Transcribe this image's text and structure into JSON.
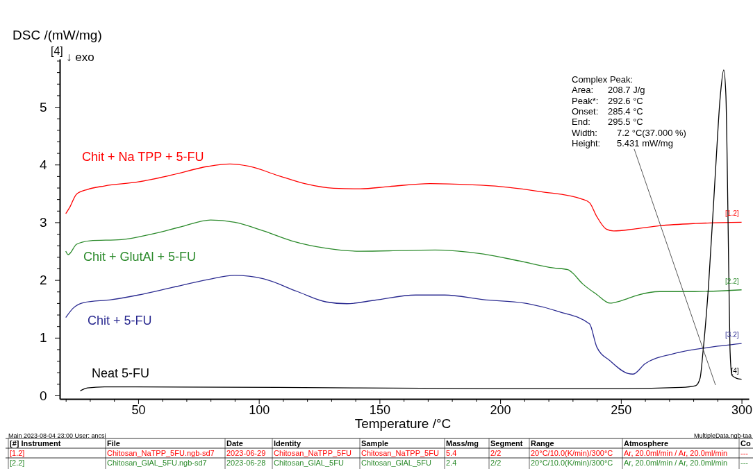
{
  "chart_data": {
    "type": "line",
    "xlabel": "Temperature /°C",
    "ylabel": "DSC /(mW/mg)",
    "xlim": [
      17.5,
      303
    ],
    "ylim": [
      -0.06,
      5.83
    ],
    "xticks": [
      {
        "value": 20,
        "label": null
      },
      {
        "value": 30,
        "label": null
      },
      {
        "value": 40,
        "label": null
      },
      50,
      {
        "value": 60,
        "label": null
      },
      {
        "value": 70,
        "label": null
      },
      {
        "value": 80,
        "label": null
      },
      {
        "value": 90,
        "label": null
      },
      100,
      {
        "value": 110,
        "label": null
      },
      {
        "value": 120,
        "label": null
      },
      {
        "value": 130,
        "label": null
      },
      {
        "value": 140,
        "label": null
      },
      150,
      {
        "value": 160,
        "label": null
      },
      {
        "value": 170,
        "label": null
      },
      {
        "value": 180,
        "label": null
      },
      {
        "value": 190,
        "label": null
      },
      200,
      {
        "value": 210,
        "label": null
      },
      {
        "value": 220,
        "label": null
      },
      {
        "value": 230,
        "label": null
      },
      {
        "value": 240,
        "label": null
      },
      250,
      {
        "value": 260,
        "label": null
      },
      {
        "value": 270,
        "label": null
      },
      {
        "value": 280,
        "label": null
      },
      {
        "value": 290,
        "label": null
      },
      300
    ],
    "yticks": [
      0,
      {
        "value": 0.2,
        "label": null
      },
      {
        "value": 0.4,
        "label": null
      },
      {
        "value": 0.6,
        "label": null
      },
      {
        "value": 0.8,
        "label": null
      },
      1,
      {
        "value": 1.2,
        "label": null
      },
      {
        "value": 1.4,
        "label": null
      },
      {
        "value": 1.6,
        "label": null
      },
      {
        "value": 1.8,
        "label": null
      },
      2,
      {
        "value": 2.2,
        "label": null
      },
      {
        "value": 2.4,
        "label": null
      },
      {
        "value": 2.6,
        "label": null
      },
      {
        "value": 2.8,
        "label": null
      },
      3,
      {
        "value": 3.2,
        "label": null
      },
      {
        "value": 3.4,
        "label": null
      },
      {
        "value": 3.6,
        "label": null
      },
      {
        "value": 3.8,
        "label": null
      },
      4,
      {
        "value": 4.2,
        "label": null
      },
      {
        "value": 4.4,
        "label": null
      },
      {
        "value": 4.6,
        "label": null
      },
      {
        "value": 4.8,
        "label": null
      },
      5,
      {
        "value": 5.2,
        "label": null
      },
      {
        "value": 5.4,
        "label": null
      },
      {
        "value": 5.6,
        "label": null
      },
      {
        "value": 5.8,
        "label": null
      }
    ],
    "grid": false,
    "legend": false,
    "line_style": "solid",
    "series": [
      {
        "name": "Chit + Na TPP + 5-FU",
        "color": "#ff0000",
        "x": [
          20,
          21.5,
          24.5,
          29,
          36,
          50,
          64,
          79,
          88,
          96,
          108,
          119,
          131,
          142,
          154,
          171,
          188,
          200,
          217,
          234,
          237,
          240,
          244,
          247,
          255,
          266,
          281,
          300
        ],
        "values": [
          3.15,
          3.25,
          3.49,
          3.57,
          3.63,
          3.7,
          3.82,
          3.97,
          4.01,
          3.97,
          3.81,
          3.67,
          3.59,
          3.58,
          3.62,
          3.67,
          3.65,
          3.62,
          3.53,
          3.4,
          3.34,
          3.1,
          2.88,
          2.85,
          2.88,
          2.94,
          2.98,
          3.0
        ]
      },
      {
        "name": "Chit + GlutAl + 5-FU",
        "color": "#2b8a2b",
        "x": [
          20,
          21,
          24.5,
          30,
          43,
          56,
          67.5,
          80,
          90,
          102,
          113.5,
          128,
          142,
          159,
          173,
          193,
          208,
          222,
          228,
          229.5,
          234,
          240,
          245.5,
          250,
          257,
          266,
          280.5,
          300
        ],
        "values": [
          2.5,
          2.44,
          2.62,
          2.68,
          2.7,
          2.8,
          2.92,
          3.04,
          3.0,
          2.85,
          2.68,
          2.55,
          2.5,
          2.51,
          2.52,
          2.45,
          2.33,
          2.21,
          2.18,
          2.14,
          1.94,
          1.75,
          1.6,
          1.64,
          1.74,
          1.8,
          1.8,
          1.83
        ]
      },
      {
        "name": "Chit + 5-FU",
        "color": "#2a2a90",
        "x": [
          20,
          23,
          27.5,
          39,
          50,
          64,
          79,
          90,
          102,
          116,
          128,
          136.5,
          148,
          165,
          177,
          193,
          210,
          224.5,
          237,
          240,
          245.5,
          253,
          255,
          260,
          271.5,
          286,
          300
        ],
        "values": [
          1.35,
          1.51,
          1.61,
          1.66,
          1.74,
          1.87,
          2.01,
          2.08,
          2.02,
          1.8,
          1.62,
          1.59,
          1.65,
          1.74,
          1.74,
          1.66,
          1.6,
          1.45,
          1.24,
          0.84,
          0.6,
          0.38,
          0.37,
          0.55,
          0.72,
          0.83,
          0.9
        ]
      },
      {
        "name": "Neat 5-FU",
        "color": "#000000",
        "x": [
          26,
          29,
          36,
          108,
          193,
          250.5,
          275,
          281,
          282.8,
          284,
          286.3,
          289.2,
          291.2,
          292.6,
          293.5,
          294.4,
          295.2,
          296,
          297.8,
          300
        ],
        "values": [
          0.08,
          0.13,
          0.15,
          0.14,
          0.12,
          0.12,
          0.14,
          0.17,
          0.3,
          0.75,
          1.9,
          3.9,
          5.2,
          5.64,
          5.2,
          3.0,
          0.8,
          0.35,
          0.3,
          0.28
        ]
      }
    ],
    "annotations": [
      "[4]",
      "↓ exo",
      "Main   2023-08-04 23:00   User: ancsi",
      "MultipleData.ngb-taa",
      "[1.2]",
      "[2.2]",
      "[3.2]",
      "[4]",
      "Complex Peak:",
      "Area:",
      "208.7 J/g",
      "Peak*:",
      "292.6 °C",
      "Onset:",
      "285.4 °C",
      "End:",
      "295.5 °C",
      "Width:",
      "7.2 °C(37.000 %)",
      "Height:",
      "5.431 mW/mg",
      "[#] Instrument\tFile\tDate\tIdentity\tSample\tMass/mg\tSegment\tRange\tAtmosphere\tCo",
      "[1.2]\tChitosan_NaTPP_5FU.ngb-sd7\t2023-06-29\tChitosan_NaTPP_5FU\tChitosan_NaTPP_5FU\t5.4\t2/2\t20°C/10.0(K/min)/300°C\tAr, 20.0ml/min / Ar, 20.0ml/min\t---",
      "[2.2]\tChitosan_GlAL_5FU.ngb-sd7\t2023-06-28\tChitosan_GlAL_5FU\tChitosan_GlAL_5FU\t2.4\t2/2\t20°C/10.0(K/min)/300°C\tAr, 20.0ml/min / Ar, 20.0ml/min\t---"
    ]
  }
}
